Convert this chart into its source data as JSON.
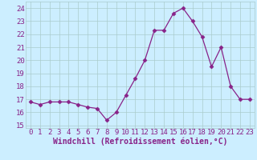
{
  "x": [
    0,
    1,
    2,
    3,
    4,
    5,
    6,
    7,
    8,
    9,
    10,
    11,
    12,
    13,
    14,
    15,
    16,
    17,
    18,
    19,
    20,
    21,
    22,
    23
  ],
  "y": [
    16.8,
    16.6,
    16.8,
    16.8,
    16.8,
    16.6,
    16.4,
    16.3,
    15.4,
    16.0,
    17.3,
    18.6,
    20.0,
    22.3,
    22.3,
    23.6,
    24.0,
    23.0,
    21.8,
    19.5,
    21.0,
    18.0,
    17.0,
    17.0
  ],
  "line_color": "#882288",
  "marker": "D",
  "marker_size": 2.5,
  "bg_color": "#cceeff",
  "grid_color": "#aacccc",
  "ylabel_ticks": [
    15,
    16,
    17,
    18,
    19,
    20,
    21,
    22,
    23,
    24
  ],
  "ylim": [
    14.8,
    24.5
  ],
  "xlim": [
    -0.5,
    23.5
  ],
  "xlabel": "Windchill (Refroidissement éolien,°C)",
  "xlabel_color": "#882288",
  "tick_color": "#882288",
  "label_fontsize": 7,
  "tick_fontsize": 6.5
}
